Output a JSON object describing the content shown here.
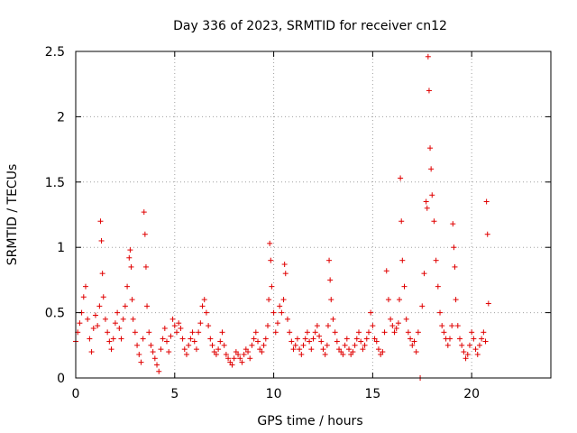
{
  "chart_data": {
    "type": "scatter",
    "title": "Day 336 of 2023, SRMTID for receiver cn12",
    "xlabel": "GPS time / hours",
    "ylabel": "SRMTID / TECUs",
    "xlim": [
      0,
      24
    ],
    "ylim": [
      0,
      2.5
    ],
    "xticks": [
      0,
      5,
      10,
      15,
      20
    ],
    "xtick_labels": [
      "0",
      "5",
      "10",
      "15",
      "20"
    ],
    "yticks": [
      0,
      0.5,
      1,
      1.5,
      2,
      2.5
    ],
    "ytick_labels": [
      "0",
      "0.5",
      "1",
      "1.5",
      "2",
      "2.5"
    ],
    "grid": true,
    "marker": "+",
    "marker_color": "#e00000",
    "series": [
      {
        "name": "SRMTID",
        "x": [
          0.0,
          0.1,
          0.2,
          0.3,
          0.4,
          0.5,
          0.6,
          0.7,
          0.8,
          0.9,
          1.0,
          1.1,
          1.2,
          1.25,
          1.3,
          1.35,
          1.4,
          1.5,
          1.6,
          1.7,
          1.8,
          1.9,
          2.0,
          2.1,
          2.2,
          2.3,
          2.4,
          2.5,
          2.6,
          2.7,
          2.75,
          2.8,
          2.85,
          2.9,
          3.0,
          3.1,
          3.2,
          3.3,
          3.4,
          3.45,
          3.5,
          3.55,
          3.6,
          3.7,
          3.8,
          3.9,
          4.0,
          4.1,
          4.2,
          4.3,
          4.4,
          4.5,
          4.6,
          4.7,
          4.8,
          4.9,
          5.0,
          5.1,
          5.2,
          5.3,
          5.4,
          5.5,
          5.6,
          5.7,
          5.8,
          5.9,
          6.0,
          6.1,
          6.2,
          6.3,
          6.4,
          6.5,
          6.6,
          6.7,
          6.8,
          6.9,
          7.0,
          7.1,
          7.2,
          7.3,
          7.4,
          7.5,
          7.6,
          7.7,
          7.8,
          7.9,
          8.0,
          8.1,
          8.2,
          8.3,
          8.4,
          8.5,
          8.6,
          8.7,
          8.8,
          8.9,
          9.0,
          9.1,
          9.2,
          9.3,
          9.4,
          9.5,
          9.6,
          9.7,
          9.75,
          9.8,
          9.85,
          9.9,
          10.0,
          10.1,
          10.2,
          10.3,
          10.4,
          10.5,
          10.55,
          10.6,
          10.7,
          10.8,
          10.9,
          11.0,
          11.1,
          11.2,
          11.3,
          11.4,
          11.5,
          11.6,
          11.7,
          11.8,
          11.9,
          12.0,
          12.1,
          12.2,
          12.3,
          12.4,
          12.5,
          12.6,
          12.7,
          12.75,
          12.8,
          12.85,
          12.9,
          13.0,
          13.1,
          13.2,
          13.3,
          13.4,
          13.5,
          13.6,
          13.7,
          13.8,
          13.9,
          14.0,
          14.1,
          14.2,
          14.3,
          14.4,
          14.5,
          14.6,
          14.7,
          14.8,
          14.9,
          15.0,
          15.1,
          15.2,
          15.3,
          15.4,
          15.5,
          15.6,
          15.7,
          15.8,
          15.9,
          16.0,
          16.1,
          16.2,
          16.3,
          16.35,
          16.4,
          16.45,
          16.5,
          16.6,
          16.7,
          16.8,
          16.9,
          17.0,
          17.1,
          17.2,
          17.3,
          17.4,
          17.5,
          17.6,
          17.7,
          17.75,
          17.8,
          17.85,
          17.9,
          17.95,
          18.0,
          18.1,
          18.2,
          18.3,
          18.4,
          18.5,
          18.6,
          18.7,
          18.8,
          18.9,
          19.0,
          19.05,
          19.1,
          19.15,
          19.2,
          19.3,
          19.4,
          19.5,
          19.6,
          19.7,
          19.8,
          19.9,
          20.0,
          20.1,
          20.2,
          20.3,
          20.4,
          20.5,
          20.6,
          20.7,
          20.75,
          20.8,
          20.85
        ],
        "y": [
          0.28,
          0.35,
          0.42,
          0.5,
          0.62,
          0.7,
          0.45,
          0.3,
          0.2,
          0.38,
          0.48,
          0.4,
          0.55,
          1.2,
          1.05,
          0.8,
          0.62,
          0.45,
          0.35,
          0.28,
          0.22,
          0.3,
          0.42,
          0.5,
          0.38,
          0.3,
          0.45,
          0.55,
          0.7,
          0.92,
          0.98,
          0.85,
          0.6,
          0.45,
          0.35,
          0.25,
          0.18,
          0.12,
          0.3,
          1.27,
          1.1,
          0.85,
          0.55,
          0.35,
          0.25,
          0.2,
          0.15,
          0.1,
          0.05,
          0.22,
          0.3,
          0.38,
          0.28,
          0.2,
          0.32,
          0.45,
          0.4,
          0.35,
          0.42,
          0.38,
          0.3,
          0.22,
          0.18,
          0.25,
          0.3,
          0.35,
          0.28,
          0.22,
          0.35,
          0.42,
          0.55,
          0.6,
          0.5,
          0.4,
          0.3,
          0.25,
          0.2,
          0.18,
          0.22,
          0.28,
          0.35,
          0.25,
          0.18,
          0.15,
          0.12,
          0.1,
          0.15,
          0.2,
          0.18,
          0.15,
          0.12,
          0.18,
          0.22,
          0.2,
          0.15,
          0.25,
          0.3,
          0.35,
          0.28,
          0.22,
          0.2,
          0.25,
          0.3,
          0.4,
          0.6,
          1.03,
          0.9,
          0.7,
          0.5,
          0.35,
          0.42,
          0.55,
          0.5,
          0.6,
          0.87,
          0.8,
          0.45,
          0.35,
          0.28,
          0.22,
          0.25,
          0.3,
          0.22,
          0.18,
          0.25,
          0.3,
          0.35,
          0.28,
          0.22,
          0.3,
          0.35,
          0.4,
          0.32,
          0.28,
          0.22,
          0.18,
          0.25,
          0.4,
          0.9,
          0.75,
          0.6,
          0.45,
          0.35,
          0.28,
          0.22,
          0.2,
          0.18,
          0.25,
          0.3,
          0.22,
          0.18,
          0.2,
          0.25,
          0.3,
          0.35,
          0.28,
          0.22,
          0.25,
          0.3,
          0.35,
          0.5,
          0.4,
          0.3,
          0.28,
          0.22,
          0.18,
          0.2,
          0.35,
          0.82,
          0.6,
          0.45,
          0.4,
          0.35,
          0.38,
          0.42,
          0.6,
          1.53,
          1.2,
          0.9,
          0.7,
          0.45,
          0.35,
          0.3,
          0.25,
          0.28,
          0.2,
          0.35,
          0.0,
          0.55,
          0.8,
          1.35,
          1.3,
          2.46,
          2.2,
          1.76,
          1.6,
          1.4,
          1.2,
          0.9,
          0.7,
          0.5,
          0.4,
          0.35,
          0.3,
          0.25,
          0.3,
          0.4,
          1.18,
          1.0,
          0.85,
          0.6,
          0.4,
          0.3,
          0.25,
          0.2,
          0.15,
          0.18,
          0.25,
          0.35,
          0.3,
          0.22,
          0.18,
          0.25,
          0.3,
          0.35,
          0.28,
          1.35,
          1.1,
          0.57
        ]
      }
    ]
  }
}
